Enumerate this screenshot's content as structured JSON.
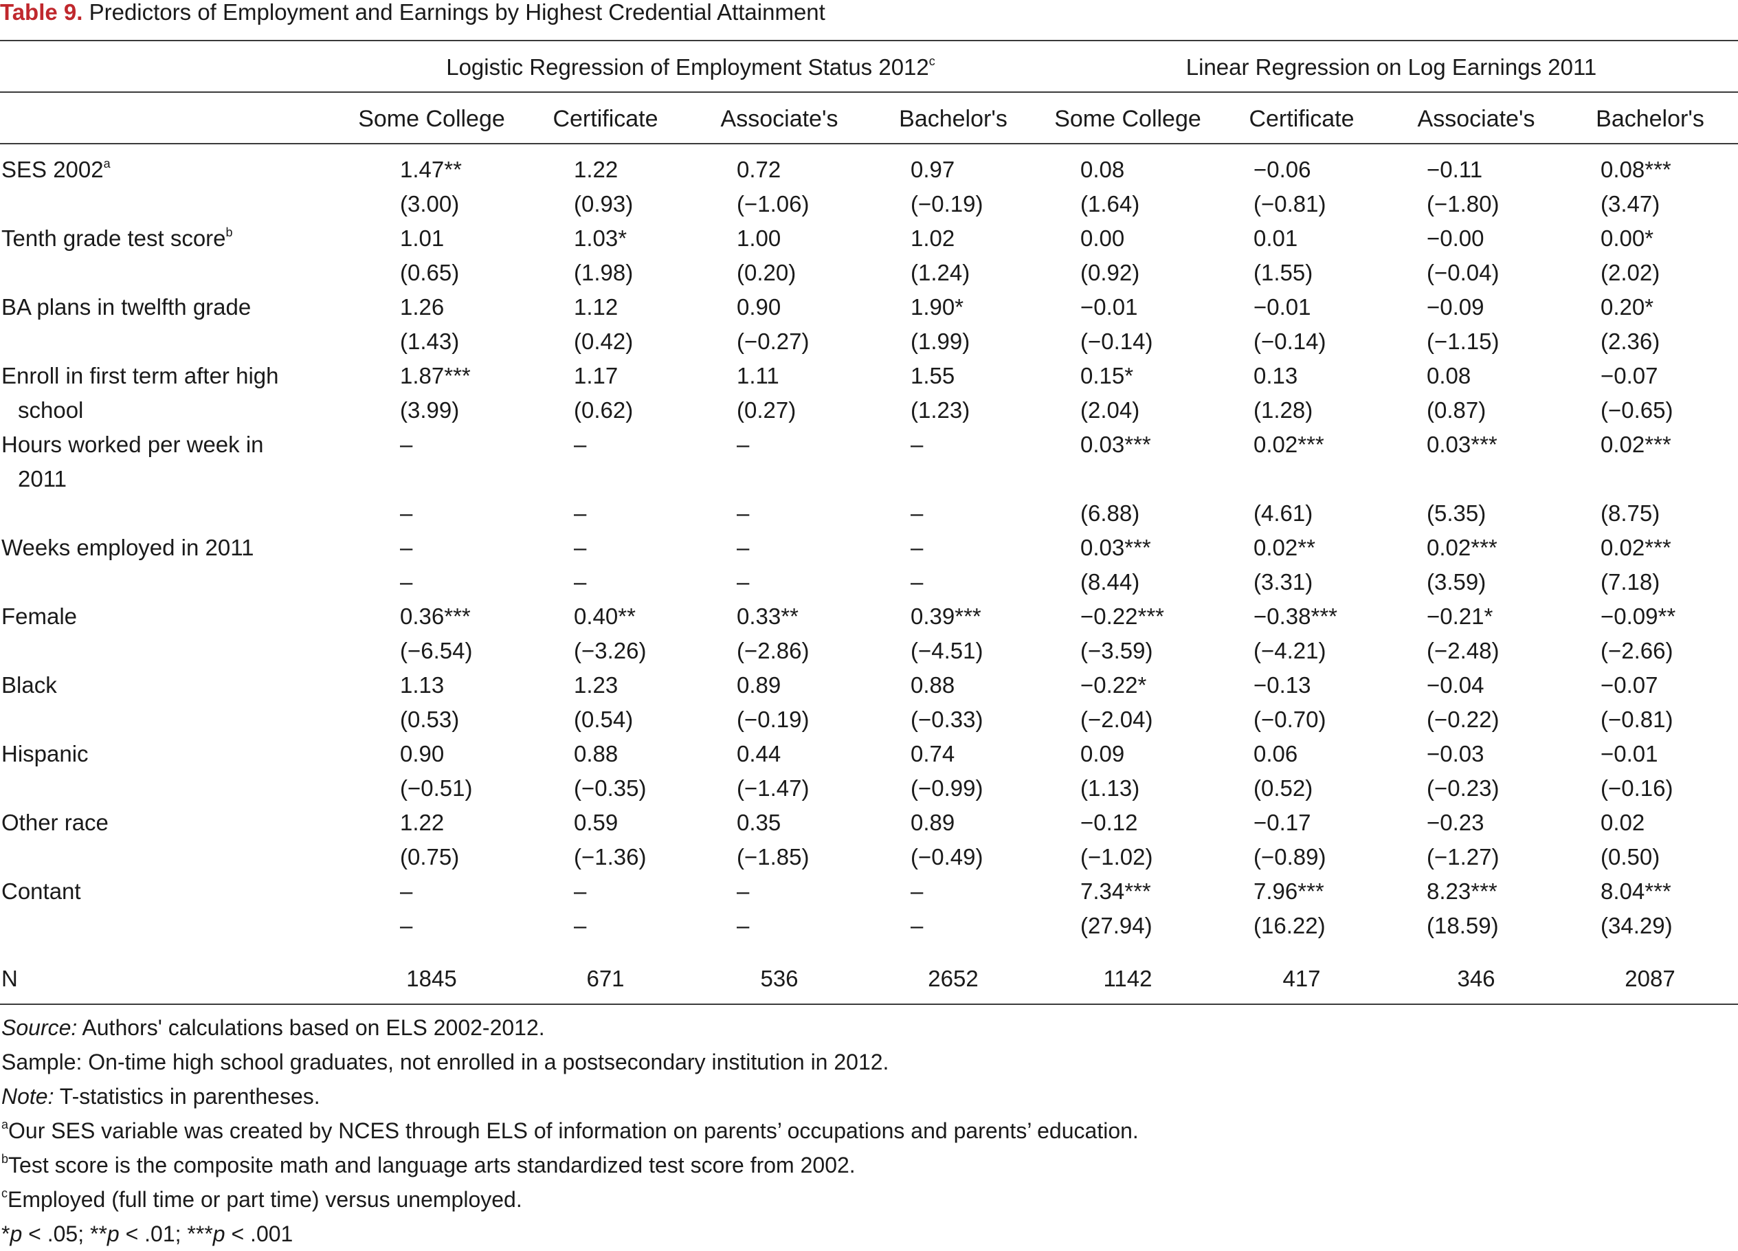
{
  "title": {
    "label": "Table 9.",
    "text": " Predictors of Employment and Earnings by Highest Credential Attainment"
  },
  "column_groups": [
    {
      "text": "Logistic Regression of Employment Status 2012",
      "sup": "c"
    },
    {
      "text": "Linear Regression on Log Earnings 2011",
      "sup": ""
    }
  ],
  "columns": [
    "Some College",
    "Certificate",
    "Associate's",
    "Bachelor's",
    "Some College",
    "Certificate",
    "Associate's",
    "Bachelor's"
  ],
  "rows": [
    {
      "label": "SES 2002",
      "sup": "a",
      "cont": false,
      "values": [
        "1.47**",
        "1.22",
        "0.72",
        "0.97",
        "0.08",
        "−0.06",
        "−0.11",
        "0.08***"
      ]
    },
    {
      "label": "",
      "sup": "",
      "cont": false,
      "values": [
        "(3.00)",
        "(0.93)",
        "(−1.06)",
        "(−0.19)",
        "(1.64)",
        "(−0.81)",
        "(−1.80)",
        "(3.47)"
      ]
    },
    {
      "label": "Tenth grade test score",
      "sup": "b",
      "cont": false,
      "values": [
        "1.01",
        "1.03*",
        "1.00",
        "1.02",
        "0.00",
        "0.01",
        "−0.00",
        "0.00*"
      ]
    },
    {
      "label": "",
      "sup": "",
      "cont": false,
      "values": [
        "(0.65)",
        "(1.98)",
        "(0.20)",
        "(1.24)",
        "(0.92)",
        "(1.55)",
        "(−0.04)",
        "(2.02)"
      ]
    },
    {
      "label": "BA plans in twelfth grade",
      "sup": "",
      "cont": false,
      "values": [
        "1.26",
        "1.12",
        "0.90",
        "1.90*",
        "−0.01",
        "−0.01",
        "−0.09",
        "0.20*"
      ]
    },
    {
      "label": "",
      "sup": "",
      "cont": false,
      "values": [
        "(1.43)",
        "(0.42)",
        "(−0.27)",
        "(1.99)",
        "(−0.14)",
        "(−0.14)",
        "(−1.15)",
        "(2.36)"
      ]
    },
    {
      "label": "Enroll in first term after high",
      "sup": "",
      "cont": false,
      "values": [
        "1.87***",
        "1.17",
        "1.11",
        "1.55",
        "0.15*",
        "0.13",
        "0.08",
        "−0.07"
      ]
    },
    {
      "label": "school",
      "sup": "",
      "cont": true,
      "values": [
        "(3.99)",
        "(0.62)",
        "(0.27)",
        "(1.23)",
        "(2.04)",
        "(1.28)",
        "(0.87)",
        "(−0.65)"
      ]
    },
    {
      "label": "Hours worked per week in",
      "sup": "",
      "cont": false,
      "values": [
        "–",
        "–",
        "–",
        "–",
        "0.03***",
        "0.02***",
        "0.03***",
        "0.02***"
      ]
    },
    {
      "label": "2011",
      "sup": "",
      "cont": true,
      "values": [
        "",
        "",
        "",
        "",
        "",
        "",
        "",
        ""
      ]
    },
    {
      "label": "",
      "sup": "",
      "cont": false,
      "values": [
        "–",
        "–",
        "–",
        "–",
        "(6.88)",
        "(4.61)",
        "(5.35)",
        "(8.75)"
      ]
    },
    {
      "label": "Weeks employed in 2011",
      "sup": "",
      "cont": false,
      "values": [
        "–",
        "–",
        "–",
        "–",
        "0.03***",
        "0.02**",
        "0.02***",
        "0.02***"
      ]
    },
    {
      "label": "",
      "sup": "",
      "cont": false,
      "values": [
        "–",
        "–",
        "–",
        "–",
        "(8.44)",
        "(3.31)",
        "(3.59)",
        "(7.18)"
      ]
    },
    {
      "label": "Female",
      "sup": "",
      "cont": false,
      "values": [
        "0.36***",
        "0.40**",
        "0.33**",
        "0.39***",
        "−0.22***",
        "−0.38***",
        "−0.21*",
        "−0.09**"
      ]
    },
    {
      "label": "",
      "sup": "",
      "cont": false,
      "values": [
        "(−6.54)",
        "(−3.26)",
        "(−2.86)",
        "(−4.51)",
        "(−3.59)",
        "(−4.21)",
        "(−2.48)",
        "(−2.66)"
      ]
    },
    {
      "label": "Black",
      "sup": "",
      "cont": false,
      "values": [
        "1.13",
        "1.23",
        "0.89",
        "0.88",
        "−0.22*",
        "−0.13",
        "−0.04",
        "−0.07"
      ]
    },
    {
      "label": "",
      "sup": "",
      "cont": false,
      "values": [
        "(0.53)",
        "(0.54)",
        "(−0.19)",
        "(−0.33)",
        "(−2.04)",
        "(−0.70)",
        "(−0.22)",
        "(−0.81)"
      ]
    },
    {
      "label": "Hispanic",
      "sup": "",
      "cont": false,
      "values": [
        "0.90",
        "0.88",
        "0.44",
        "0.74",
        "0.09",
        "0.06",
        "−0.03",
        "−0.01"
      ]
    },
    {
      "label": "",
      "sup": "",
      "cont": false,
      "values": [
        "(−0.51)",
        "(−0.35)",
        "(−1.47)",
        "(−0.99)",
        "(1.13)",
        "(0.52)",
        "(−0.23)",
        "(−0.16)"
      ]
    },
    {
      "label": "Other race",
      "sup": "",
      "cont": false,
      "values": [
        "1.22",
        "0.59",
        "0.35",
        "0.89",
        "−0.12",
        "−0.17",
        "−0.23",
        "0.02"
      ]
    },
    {
      "label": "",
      "sup": "",
      "cont": false,
      "values": [
        "(0.75)",
        "(−1.36)",
        "(−1.85)",
        "(−0.49)",
        "(−1.02)",
        "(−0.89)",
        "(−1.27)",
        "(0.50)"
      ]
    },
    {
      "label": "Contant",
      "sup": "",
      "cont": false,
      "values": [
        "–",
        "–",
        "–",
        "–",
        "7.34***",
        "7.96***",
        "8.23***",
        "8.04***"
      ]
    },
    {
      "label": "",
      "sup": "",
      "cont": false,
      "values": [
        "–",
        "–",
        "–",
        "–",
        "(27.94)",
        "(16.22)",
        "(18.59)",
        "(34.29)"
      ]
    }
  ],
  "n_row": {
    "label": "N",
    "values": [
      "1845",
      "671",
      "536",
      "2652",
      "1142",
      "417",
      "346",
      "2087"
    ]
  },
  "footnotes": {
    "source": {
      "lead": "Source:",
      "text": " Authors' calculations based on ELS 2002-2012."
    },
    "sample": "Sample: On-time high school graduates, not enrolled in a postsecondary institution in 2012.",
    "note": {
      "lead": "Note:",
      "text": " T-statistics in parentheses."
    },
    "a": {
      "mark": "a",
      "text": "Our SES variable was created by NCES through ELS of information on parents’ occupations and parents’ education."
    },
    "b": {
      "mark": "b",
      "text": "Test score is the composite math and language arts standardized test score from 2002."
    },
    "c": {
      "mark": "c",
      "text": "Employed (full time or part time) versus unemployed."
    },
    "sig": "*p < .05; **p < .01; ***p < .001"
  }
}
